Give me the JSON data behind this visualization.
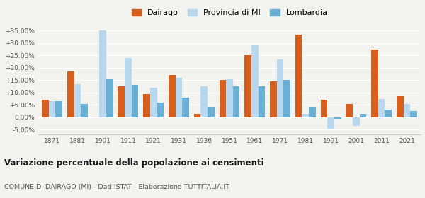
{
  "years": [
    1871,
    1881,
    1901,
    1911,
    1921,
    1931,
    1936,
    1951,
    1961,
    1971,
    1981,
    1991,
    2001,
    2011,
    2021
  ],
  "dairago": [
    7.0,
    18.5,
    0.0,
    12.5,
    9.5,
    17.0,
    1.5,
    15.0,
    25.0,
    14.5,
    33.5,
    7.0,
    5.5,
    27.5,
    8.5
  ],
  "provincia_mi": [
    6.5,
    13.5,
    35.0,
    24.0,
    12.0,
    16.0,
    12.5,
    15.5,
    29.0,
    23.5,
    1.5,
    -4.5,
    -3.5,
    7.5,
    5.5
  ],
  "lombardia": [
    6.5,
    5.5,
    15.5,
    13.0,
    6.0,
    8.0,
    4.0,
    12.5,
    12.5,
    15.0,
    4.0,
    -0.5,
    1.5,
    3.0,
    2.5
  ],
  "color_dairago": "#d45f1e",
  "color_provincia": "#b8d8f0",
  "color_lombardia": "#6aafd4",
  "title": "Variazione percentuale della popolazione ai censimenti",
  "subtitle": "COMUNE DI DAIRAGO (MI) - Dati ISTAT - Elaborazione TUTTITALIA.IT",
  "ylim": [
    -7,
    37
  ],
  "yticks": [
    -5,
    0,
    5,
    10,
    15,
    20,
    25,
    30,
    35
  ],
  "legend_labels": [
    "Dairago",
    "Provincia di MI",
    "Lombardia"
  ],
  "bg_color": "#f2f2ee"
}
